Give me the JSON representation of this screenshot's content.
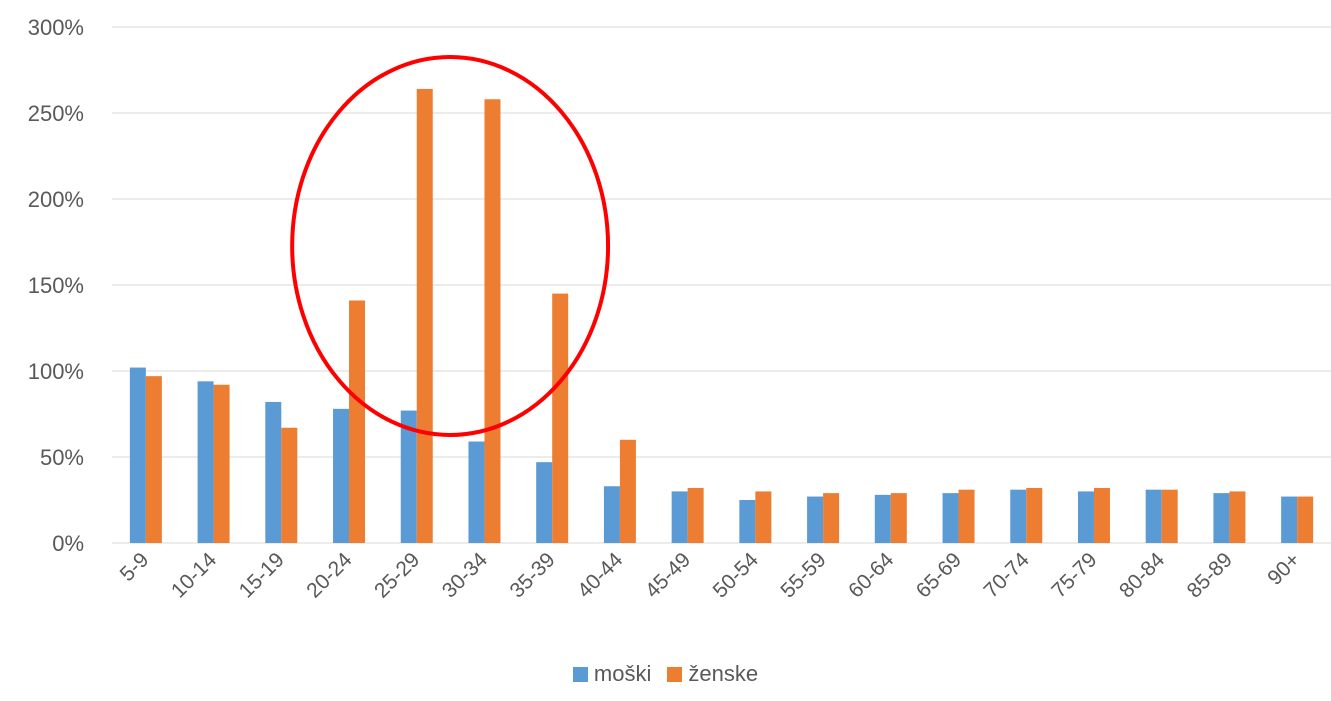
{
  "chart_data": {
    "type": "bar",
    "categories": [
      "5-9",
      "10-14",
      "15-19",
      "20-24",
      "25-29",
      "30-34",
      "35-39",
      "40-44",
      "45-49",
      "50-54",
      "55-59",
      "60-64",
      "65-69",
      "70-74",
      "75-79",
      "80-84",
      "85-89",
      "90+"
    ],
    "series": [
      {
        "name": "moški",
        "color": "#5B9BD5",
        "values": [
          102,
          94,
          82,
          78,
          77,
          59,
          47,
          33,
          30,
          25,
          27,
          28,
          29,
          31,
          30,
          31,
          29,
          27
        ]
      },
      {
        "name": "ženske",
        "color": "#ED7D31",
        "values": [
          97,
          92,
          67,
          141,
          264,
          258,
          145,
          60,
          32,
          30,
          29,
          29,
          31,
          32,
          32,
          31,
          30,
          27
        ]
      }
    ],
    "y_ticks": [
      "0%",
      "50%",
      "100%",
      "150%",
      "200%",
      "250%",
      "300%"
    ],
    "ylim": [
      0,
      300
    ],
    "grid": true,
    "legend_position": "bottom",
    "annotation": {
      "shape": "ellipse",
      "color": "#FF0000",
      "around_categories": [
        "20-24",
        "25-29",
        "30-34",
        "35-39"
      ]
    }
  }
}
